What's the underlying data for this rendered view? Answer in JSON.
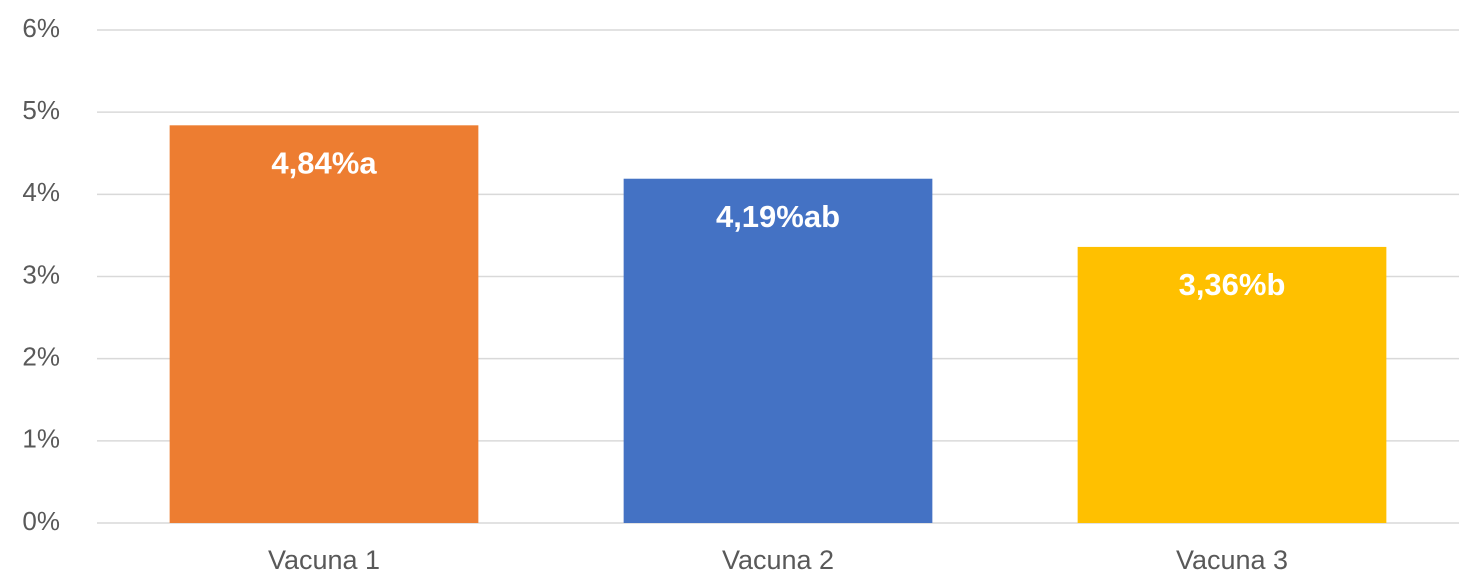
{
  "chart_data": {
    "type": "bar",
    "categories": [
      "Vacuna 1",
      "Vacuna 2",
      "Vacuna 3"
    ],
    "values": [
      4.84,
      4.19,
      3.36
    ],
    "value_labels": [
      "4,84%a",
      "4,19%ab",
      "3,36%b"
    ],
    "colors": [
      "#ed7d31",
      "#4472c4",
      "#ffc000"
    ],
    "ylim": [
      0,
      6
    ],
    "yticks": [
      {
        "value": 0,
        "label": "0%"
      },
      {
        "value": 1,
        "label": "1%"
      },
      {
        "value": 2,
        "label": "2%"
      },
      {
        "value": 3,
        "label": "3%"
      },
      {
        "value": 4,
        "label": "4%"
      },
      {
        "value": 5,
        "label": "5%"
      },
      {
        "value": 6,
        "label": "6%"
      }
    ],
    "grid": true
  }
}
